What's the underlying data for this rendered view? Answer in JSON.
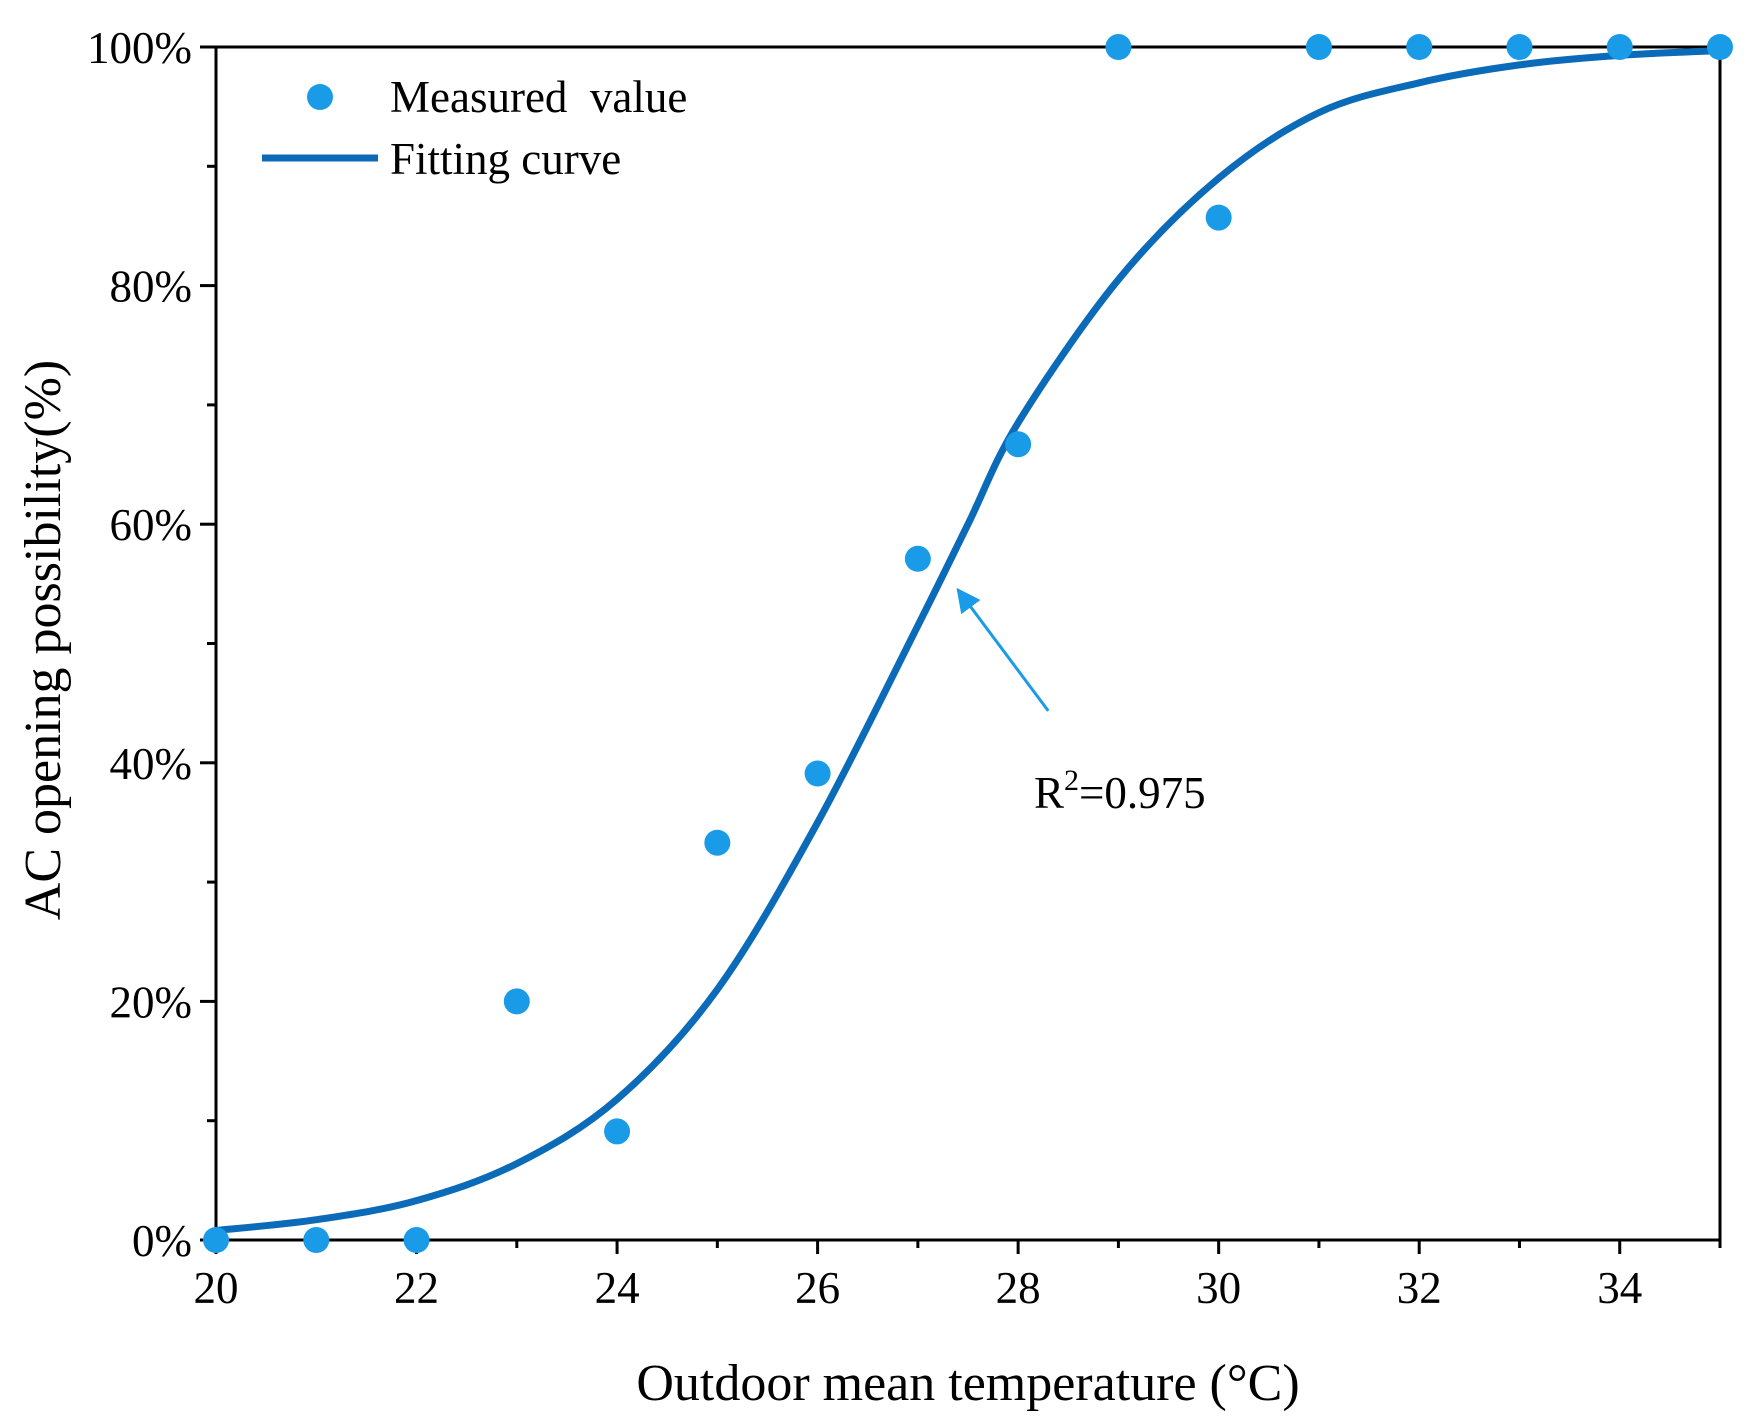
{
  "chart_data": {
    "type": "scatter",
    "title": "",
    "xlabel": "Outdoor mean temperature (°C)",
    "ylabel": "AC opening possibility(%)",
    "xlim": [
      20,
      35
    ],
    "ylim": [
      0,
      100
    ],
    "x_ticks": [
      20,
      22,
      24,
      26,
      28,
      30,
      32,
      34
    ],
    "x_tick_labels": [
      "20",
      "22",
      "24",
      "26",
      "28",
      "30",
      "32",
      "34"
    ],
    "y_ticks": [
      0,
      20,
      40,
      60,
      80,
      100
    ],
    "y_tick_labels": [
      "0%",
      "20%",
      "40%",
      "60%",
      "80%",
      "100%"
    ],
    "grid": false,
    "legend_position": "top-left",
    "series": [
      {
        "name": "Measured  value",
        "kind": "scatter",
        "color": "#1a9be8",
        "x": [
          20,
          21,
          22,
          23,
          24,
          25,
          26,
          27,
          28,
          29,
          30,
          31,
          32,
          33,
          34,
          35
        ],
        "y": [
          0,
          0,
          0,
          20,
          9.1,
          33.3,
          39.1,
          57.1,
          66.7,
          100,
          85.7,
          100,
          100,
          100,
          100,
          100
        ]
      },
      {
        "name": "Fitting curve",
        "kind": "line",
        "color": "#0b6bb8",
        "x": [
          20,
          21,
          22,
          23,
          24,
          25,
          26,
          27,
          27.5,
          28,
          29,
          30,
          31,
          32,
          33,
          34,
          35
        ],
        "y": [
          0.8,
          1.7,
          3.3,
          6.4,
          11.8,
          21.0,
          35.0,
          51.5,
          60.0,
          68.5,
          80.5,
          89.0,
          94.5,
          97.0,
          98.5,
          99.3,
          99.7
        ]
      }
    ],
    "annotations": [
      {
        "text_main": "R",
        "text_sup": "2",
        "text_rest": "=0.975",
        "arrow_color": "#1a9be8",
        "arrow_from": [
          28.5,
          41
        ],
        "arrow_to": [
          27.4,
          54.5
        ]
      }
    ]
  }
}
